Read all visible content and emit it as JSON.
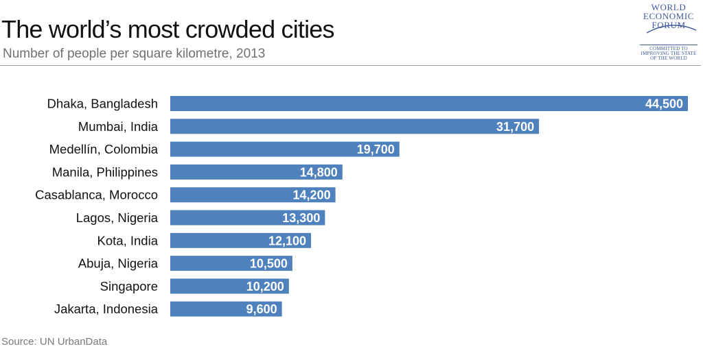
{
  "title": "The world’s most crowded cities",
  "subtitle": "Number of people per square kilometre, 2013",
  "source": "Source: UN UrbanData",
  "logo": {
    "name_lines": [
      "WORLD",
      "ECONOMIC",
      "FORUM"
    ],
    "tagline_lines": [
      "COMMITTED TO",
      "IMPROVING THE STATE",
      "OF THE WORLD"
    ]
  },
  "colors": {
    "bar": "#4f81bd",
    "logo": "#3d5a99"
  },
  "chart_data": {
    "type": "bar",
    "orientation": "horizontal",
    "categories": [
      "Dhaka, Bangladesh",
      "Mumbai, India",
      "Medellín, Colombia",
      "Manila, Philippines",
      "Casablanca, Morocco",
      "Lagos, Nigeria",
      "Kota, India",
      "Abuja, Nigeria",
      "Singapore",
      "Jakarta, Indonesia"
    ],
    "values": [
      44500,
      31700,
      19700,
      14800,
      14200,
      13300,
      12100,
      10500,
      10200,
      9600
    ],
    "value_labels": [
      "44,500",
      "31,700",
      "19,700",
      "14,800",
      "14,200",
      "13,300",
      "12,100",
      "10,500",
      "10,200",
      "9,600"
    ],
    "title": "The world’s most crowded cities",
    "subtitle": "Number of people per square kilometre, 2013",
    "xlabel": "",
    "ylabel": "",
    "xlim": [
      0,
      44500
    ],
    "grid": false,
    "legend": "none"
  }
}
